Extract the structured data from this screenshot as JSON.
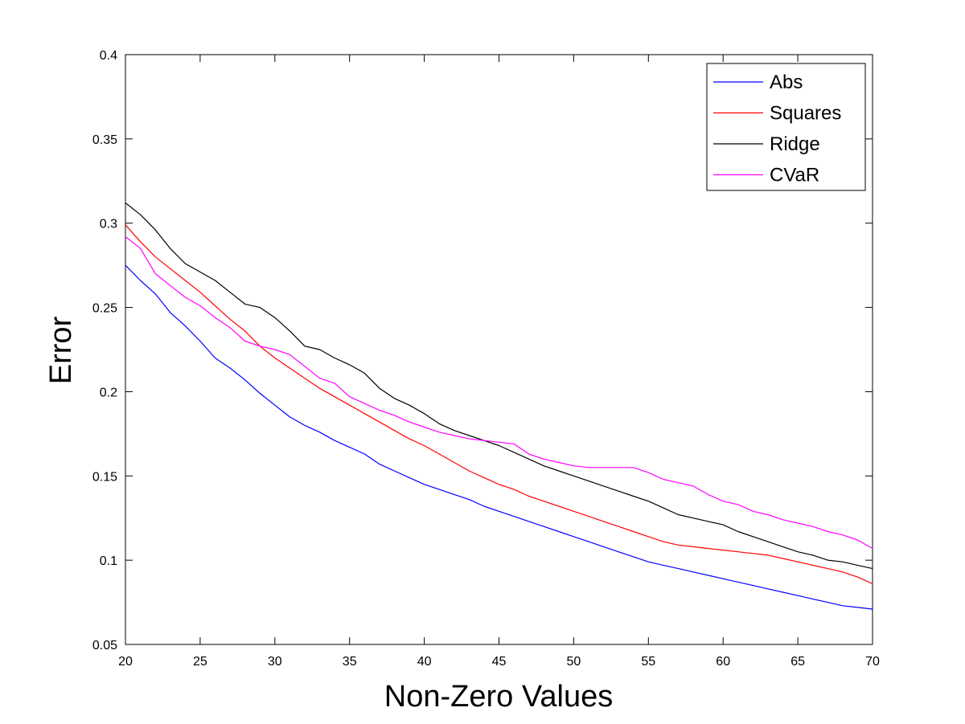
{
  "chart_data": {
    "type": "line",
    "title": "",
    "xlabel": "Non-Zero Values",
    "ylabel": "Error",
    "xlim": [
      20,
      70
    ],
    "ylim": [
      0.05,
      0.4
    ],
    "xticks": [
      20,
      25,
      30,
      35,
      40,
      45,
      50,
      55,
      60,
      65,
      70
    ],
    "yticks": [
      0.05,
      0.1,
      0.15,
      0.2,
      0.25,
      0.3,
      0.35,
      0.4
    ],
    "xtick_labels": [
      "20",
      "25",
      "30",
      "35",
      "40",
      "45",
      "50",
      "55",
      "60",
      "65",
      "70"
    ],
    "ytick_labels": [
      "0.05",
      "0.1",
      "0.15",
      "0.2",
      "0.25",
      "0.3",
      "0.35",
      "0.4"
    ],
    "grid": false,
    "legend_position": "top-right",
    "x": [
      20,
      21,
      22,
      23,
      24,
      25,
      26,
      27,
      28,
      29,
      30,
      31,
      32,
      33,
      34,
      35,
      36,
      37,
      38,
      39,
      40,
      41,
      42,
      43,
      44,
      45,
      46,
      47,
      48,
      49,
      50,
      51,
      52,
      53,
      54,
      55,
      56,
      57,
      58,
      59,
      60,
      61,
      62,
      63,
      64,
      65,
      66,
      67,
      68,
      69,
      70
    ],
    "series": [
      {
        "name": "Abs",
        "color": "#0000ff",
        "values": [
          0.275,
          0.266,
          0.258,
          0.247,
          0.239,
          0.23,
          0.22,
          0.214,
          0.207,
          0.199,
          0.192,
          0.185,
          0.18,
          0.176,
          0.171,
          0.167,
          0.163,
          0.157,
          0.153,
          0.149,
          0.145,
          0.142,
          0.139,
          0.136,
          0.132,
          0.129,
          0.126,
          0.123,
          0.12,
          0.117,
          0.114,
          0.111,
          0.108,
          0.105,
          0.102,
          0.099,
          0.097,
          0.095,
          0.093,
          0.091,
          0.089,
          0.087,
          0.085,
          0.083,
          0.081,
          0.079,
          0.077,
          0.075,
          0.073,
          0.072,
          0.071
        ]
      },
      {
        "name": "Squares",
        "color": "#ff0000",
        "values": [
          0.299,
          0.289,
          0.28,
          0.273,
          0.266,
          0.259,
          0.251,
          0.243,
          0.236,
          0.227,
          0.22,
          0.214,
          0.208,
          0.202,
          0.197,
          0.192,
          0.187,
          0.182,
          0.177,
          0.172,
          0.168,
          0.163,
          0.158,
          0.153,
          0.149,
          0.145,
          0.142,
          0.138,
          0.135,
          0.132,
          0.129,
          0.126,
          0.123,
          0.12,
          0.117,
          0.114,
          0.111,
          0.109,
          0.108,
          0.107,
          0.106,
          0.105,
          0.104,
          0.103,
          0.101,
          0.099,
          0.097,
          0.095,
          0.093,
          0.09,
          0.086
        ]
      },
      {
        "name": "Ridge",
        "color": "#000000",
        "values": [
          0.312,
          0.305,
          0.296,
          0.285,
          0.276,
          0.271,
          0.266,
          0.259,
          0.252,
          0.25,
          0.244,
          0.236,
          0.227,
          0.225,
          0.22,
          0.216,
          0.211,
          0.202,
          0.196,
          0.192,
          0.187,
          0.181,
          0.177,
          0.174,
          0.171,
          0.168,
          0.164,
          0.16,
          0.156,
          0.153,
          0.15,
          0.147,
          0.144,
          0.141,
          0.138,
          0.135,
          0.131,
          0.127,
          0.125,
          0.123,
          0.121,
          0.117,
          0.114,
          0.111,
          0.108,
          0.105,
          0.103,
          0.1,
          0.099,
          0.097,
          0.095
        ]
      },
      {
        "name": "CVaR",
        "color": "#ff00ff",
        "values": [
          0.292,
          0.285,
          0.27,
          0.263,
          0.256,
          0.251,
          0.244,
          0.238,
          0.23,
          0.227,
          0.225,
          0.222,
          0.215,
          0.208,
          0.205,
          0.197,
          0.193,
          0.189,
          0.186,
          0.182,
          0.179,
          0.176,
          0.174,
          0.172,
          0.171,
          0.17,
          0.169,
          0.163,
          0.16,
          0.158,
          0.156,
          0.155,
          0.155,
          0.155,
          0.155,
          0.152,
          0.148,
          0.146,
          0.144,
          0.139,
          0.135,
          0.133,
          0.129,
          0.127,
          0.124,
          0.122,
          0.12,
          0.117,
          0.115,
          0.112,
          0.107
        ]
      }
    ]
  }
}
